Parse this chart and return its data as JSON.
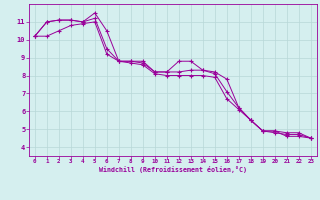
{
  "x": [
    0,
    1,
    2,
    3,
    4,
    5,
    6,
    7,
    8,
    9,
    10,
    11,
    12,
    13,
    14,
    15,
    16,
    17,
    18,
    19,
    20,
    21,
    22,
    23
  ],
  "line1": [
    10.2,
    11.0,
    11.1,
    11.1,
    11.0,
    11.5,
    10.5,
    8.8,
    8.8,
    8.8,
    8.2,
    8.2,
    8.8,
    8.8,
    8.3,
    8.2,
    7.8,
    6.2,
    5.5,
    4.9,
    4.9,
    4.6,
    4.6,
    4.5
  ],
  "line2": [
    10.2,
    11.0,
    11.1,
    11.1,
    11.0,
    11.2,
    9.5,
    8.8,
    8.8,
    8.7,
    8.2,
    8.2,
    8.2,
    8.3,
    8.3,
    8.1,
    7.1,
    6.2,
    5.5,
    4.9,
    4.9,
    4.8,
    4.8,
    4.5
  ],
  "line3": [
    10.2,
    10.2,
    10.5,
    10.8,
    10.9,
    11.0,
    9.2,
    8.8,
    8.7,
    8.6,
    8.1,
    8.0,
    8.0,
    8.0,
    8.0,
    7.9,
    6.7,
    6.1,
    5.5,
    4.9,
    4.8,
    4.7,
    4.7,
    4.5
  ],
  "color": "#990099",
  "bg_color": "#d5efef",
  "grid_color": "#b8d8d8",
  "xlabel": "Windchill (Refroidissement éolien,°C)",
  "ylim": [
    3.5,
    12.0
  ],
  "xlim": [
    -0.5,
    23.5
  ],
  "yticks": [
    4,
    5,
    6,
    7,
    8,
    9,
    10,
    11
  ],
  "xticks": [
    0,
    1,
    2,
    3,
    4,
    5,
    6,
    7,
    8,
    9,
    10,
    11,
    12,
    13,
    14,
    15,
    16,
    17,
    18,
    19,
    20,
    21,
    22,
    23
  ]
}
